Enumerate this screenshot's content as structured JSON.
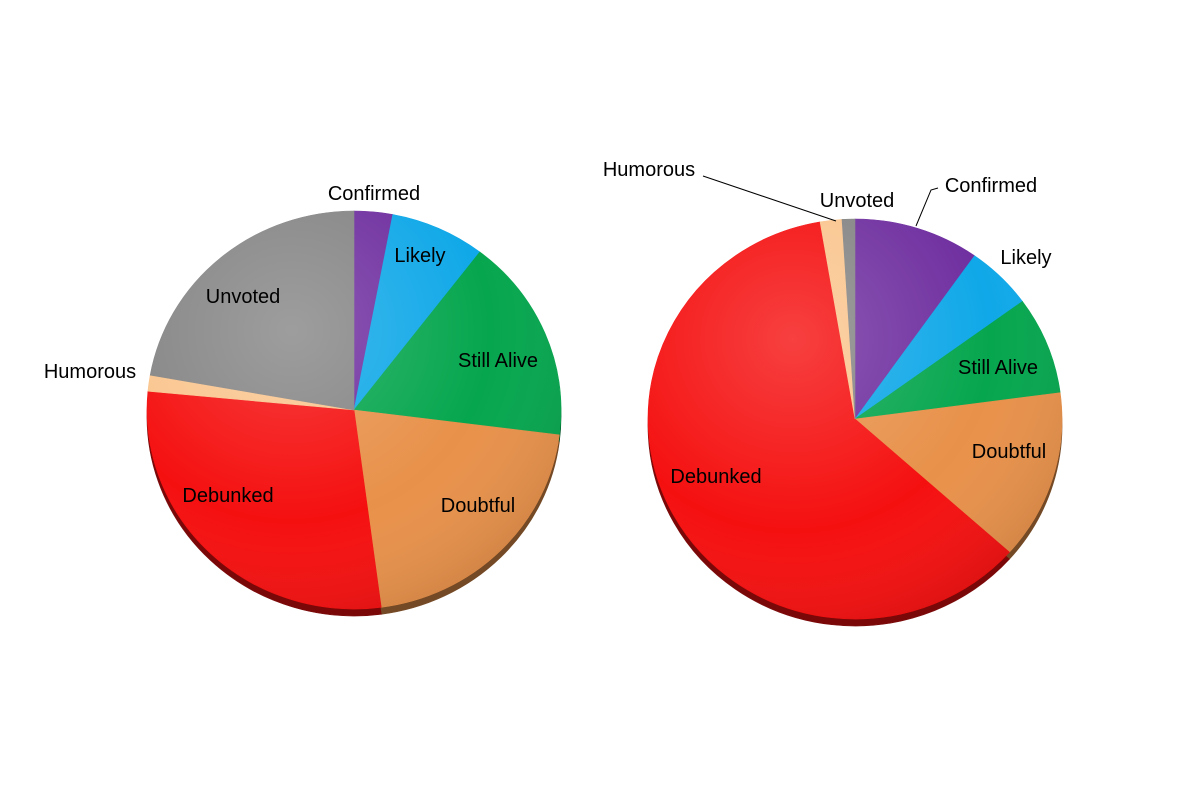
{
  "chart_data": [
    {
      "type": "pie",
      "categories": [
        "Confirmed",
        "Likely",
        "Still Alive",
        "Doubtful",
        "Debunked",
        "Humorous",
        "Unvoted"
      ],
      "values": [
        3.0,
        7.4,
        16.6,
        20.9,
        28.6,
        1.3,
        22.2
      ],
      "colors": [
        "#7030A0",
        "#10A8E8",
        "#06A64E",
        "#E8914A",
        "#F51010",
        "#FAC58E",
        "#858585"
      ],
      "start": "12 o'clock, clockwise",
      "legend": "none (labels on slices)"
    },
    {
      "type": "pie",
      "categories": [
        "Confirmed",
        "Likely",
        "Still Alive",
        "Doubtful",
        "Debunked",
        "Humorous",
        "Unvoted"
      ],
      "values": [
        9.8,
        5.2,
        7.9,
        13.7,
        60.7,
        1.7,
        1.0
      ],
      "colors": [
        "#7030A0",
        "#10A8E8",
        "#06A64E",
        "#E8914A",
        "#F51010",
        "#FAC58E",
        "#858585"
      ],
      "start": "12 o'clock, clockwise",
      "legend": "none (labels on slices)"
    }
  ]
}
